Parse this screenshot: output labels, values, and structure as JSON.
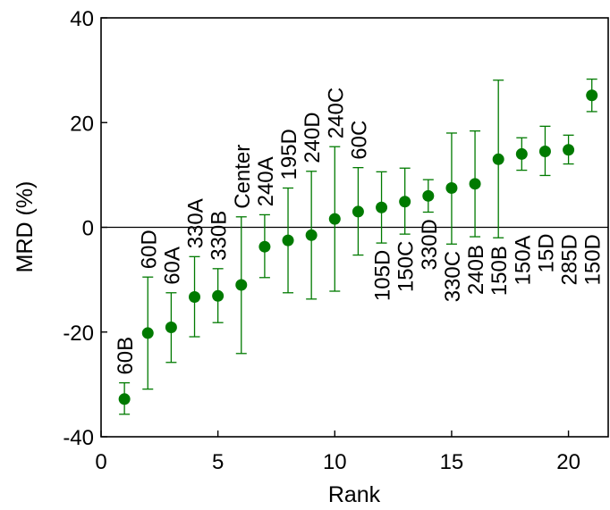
{
  "chart_data": {
    "type": "scatter",
    "xlabel": "Rank",
    "ylabel": "MRD (%)",
    "xlim": [
      0,
      21.7
    ],
    "ylim": [
      -40,
      40
    ],
    "xticks": [
      0,
      5,
      10,
      15,
      20
    ],
    "yticks": [
      -40,
      -20,
      0,
      20,
      40
    ],
    "grid": false,
    "zero_line": true,
    "color": "#007a00",
    "points": [
      {
        "x": 1,
        "y": -32.8,
        "lo": -35.7,
        "hi": -29.7
      },
      {
        "x": 2,
        "y": -20.2,
        "lo": -30.9,
        "hi": -9.5
      },
      {
        "x": 3,
        "y": -19.1,
        "lo": -25.8,
        "hi": -12.5
      },
      {
        "x": 4,
        "y": -13.3,
        "lo": -20.9,
        "hi": -5.6
      },
      {
        "x": 5,
        "y": -13.1,
        "lo": -18.2,
        "hi": -7.9
      },
      {
        "x": 6,
        "y": -11.0,
        "lo": -24.1,
        "hi": 2.0
      },
      {
        "x": 7,
        "y": -3.7,
        "lo": -9.6,
        "hi": 2.4
      },
      {
        "x": 8,
        "y": -2.5,
        "lo": -12.5,
        "hi": 7.5
      },
      {
        "x": 9,
        "y": -1.5,
        "lo": -13.7,
        "hi": 10.7
      },
      {
        "x": 10,
        "y": 1.6,
        "lo": -12.2,
        "hi": 15.4
      },
      {
        "x": 11,
        "y": 3.0,
        "lo": -5.3,
        "hi": 11.4
      },
      {
        "x": 12,
        "y": 3.8,
        "lo": -3.0,
        "hi": 10.6
      },
      {
        "x": 13,
        "y": 4.9,
        "lo": -1.3,
        "hi": 11.3
      },
      {
        "x": 14,
        "y": 6.0,
        "lo": 2.9,
        "hi": 9.1
      },
      {
        "x": 15,
        "y": 7.5,
        "lo": -3.2,
        "hi": 18.0
      },
      {
        "x": 16,
        "y": 8.3,
        "lo": -1.8,
        "hi": 18.4
      },
      {
        "x": 17,
        "y": 13.0,
        "lo": -2.0,
        "hi": 28.1
      },
      {
        "x": 18,
        "y": 14.0,
        "lo": 10.9,
        "hi": 17.1
      },
      {
        "x": 19,
        "y": 14.5,
        "lo": 9.9,
        "hi": 19.3
      },
      {
        "x": 20,
        "y": 14.8,
        "lo": 12.1,
        "hi": 17.6
      },
      {
        "x": 21,
        "y": 25.2,
        "lo": 22.1,
        "hi": 28.3
      }
    ],
    "annotations": [
      {
        "text": "60B"
      },
      {
        "text": "60D"
      },
      {
        "text": "60A"
      },
      {
        "text": "330A"
      },
      {
        "text": "330B"
      },
      {
        "text": "Center"
      },
      {
        "text": "240A"
      },
      {
        "text": "195D"
      },
      {
        "text": "240D"
      },
      {
        "text": "240C"
      },
      {
        "text": "60C"
      },
      {
        "text": "105D"
      },
      {
        "text": "150C"
      },
      {
        "text": "330D"
      },
      {
        "text": "330C"
      },
      {
        "text": "240B"
      },
      {
        "text": "150B"
      },
      {
        "text": "150A"
      },
      {
        "text": "15D"
      },
      {
        "text": "285D"
      },
      {
        "text": "150D"
      }
    ]
  }
}
